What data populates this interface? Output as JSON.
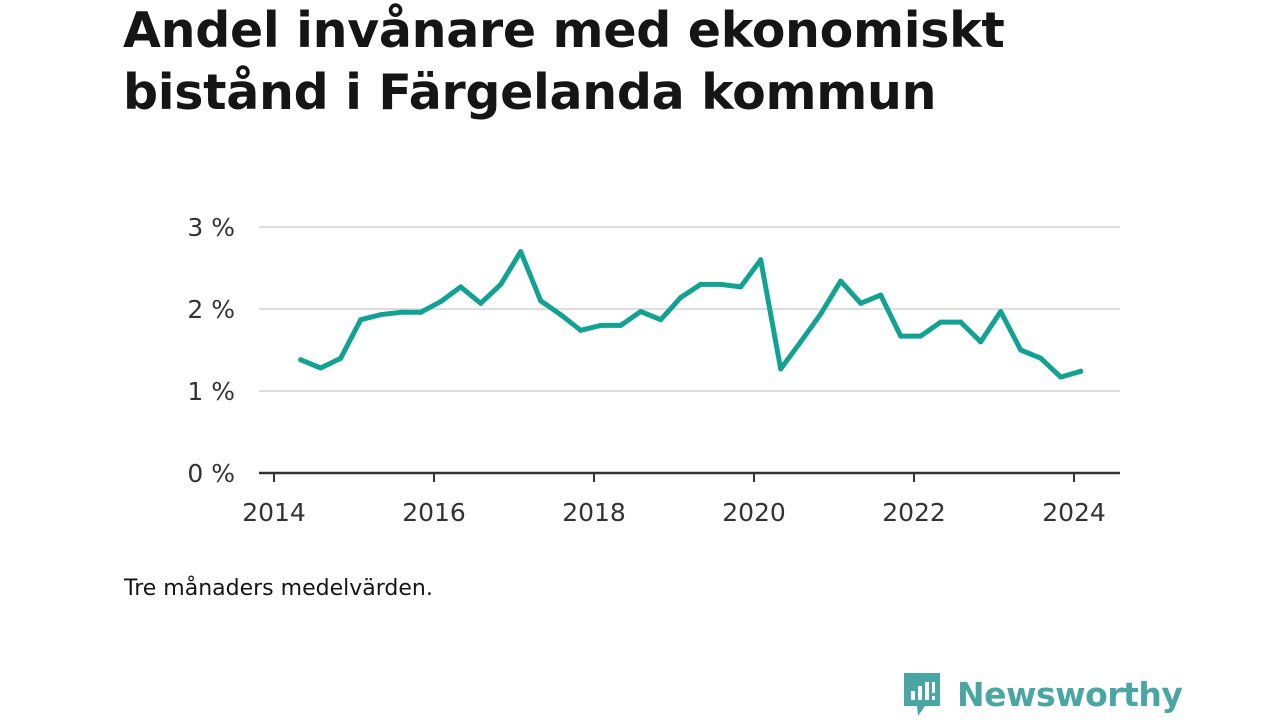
{
  "title": "Andel invånare med ekonomiskt bistånd i Färgelanda kommun",
  "caption": "Tre månaders medelvärden.",
  "brand": {
    "name": "Newsworthy",
    "color": "#4aa6a2"
  },
  "chart_data": {
    "type": "line",
    "title": "Andel invånare med ekonomiskt bistånd i Färgelanda kommun",
    "xlabel": "",
    "ylabel": "",
    "x_ticks": [
      "2014",
      "2016",
      "2018",
      "2020",
      "2022",
      "2024"
    ],
    "y_ticks": [
      "0 %",
      "1 %",
      "2 %",
      "3 %"
    ],
    "xlim": [
      "2014-01",
      "2024-12"
    ],
    "ylim": [
      0,
      3
    ],
    "grid": true,
    "line_color": "#12a293",
    "series": [
      {
        "x": [
          "2014-05",
          "2014-08",
          "2014-11",
          "2015-02",
          "2015-05",
          "2015-08",
          "2015-11",
          "2016-02",
          "2016-05",
          "2016-08",
          "2016-11",
          "2017-02",
          "2017-05",
          "2017-08",
          "2017-11",
          "2018-02",
          "2018-05",
          "2018-08",
          "2018-11",
          "2019-02",
          "2019-05",
          "2019-08",
          "2019-11",
          "2020-02",
          "2020-05",
          "2020-08",
          "2020-11",
          "2021-02",
          "2021-05",
          "2021-08",
          "2021-11",
          "2022-02",
          "2022-05",
          "2022-08",
          "2022-11",
          "2023-02",
          "2023-05",
          "2023-08",
          "2023-11",
          "2024-02"
        ],
        "values": [
          1.38,
          1.28,
          1.4,
          1.87,
          1.93,
          1.96,
          1.96,
          2.09,
          2.27,
          2.07,
          2.3,
          2.7,
          2.1,
          1.93,
          1.74,
          1.8,
          1.8,
          1.97,
          1.87,
          2.14,
          2.3,
          2.3,
          2.27,
          2.6,
          1.27,
          1.6,
          1.94,
          2.34,
          2.07,
          2.17,
          1.67,
          1.67,
          1.84,
          1.84,
          1.6,
          1.97,
          1.5,
          1.4,
          1.17,
          1.24
        ]
      }
    ]
  }
}
